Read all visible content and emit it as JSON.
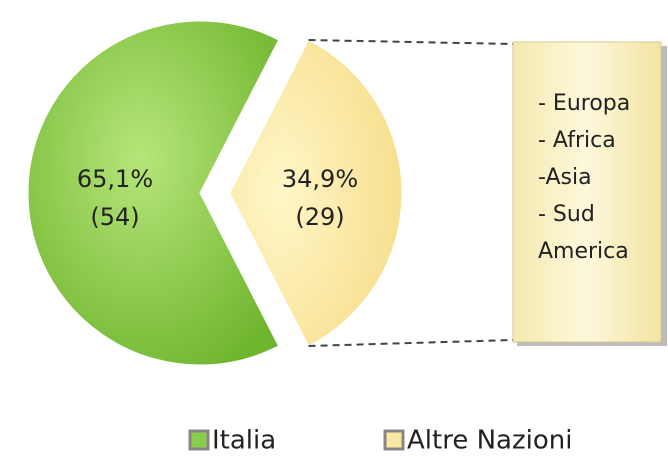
{
  "chart_data": {
    "type": "pie",
    "categories": [
      "Italia",
      "Altre Nazioni"
    ],
    "values": [
      65.1,
      34.9
    ],
    "value_labels": [
      "65,1%",
      "34,9%"
    ],
    "counts": [
      54,
      29
    ],
    "count_labels": [
      "(54)",
      "(29)"
    ],
    "colors": [
      "#8cce4a",
      "#fbe8a2"
    ],
    "legend": "bottom",
    "callout": [
      "- Europa",
      "- Africa",
      "-Asia",
      "- Sud",
      "America"
    ]
  }
}
